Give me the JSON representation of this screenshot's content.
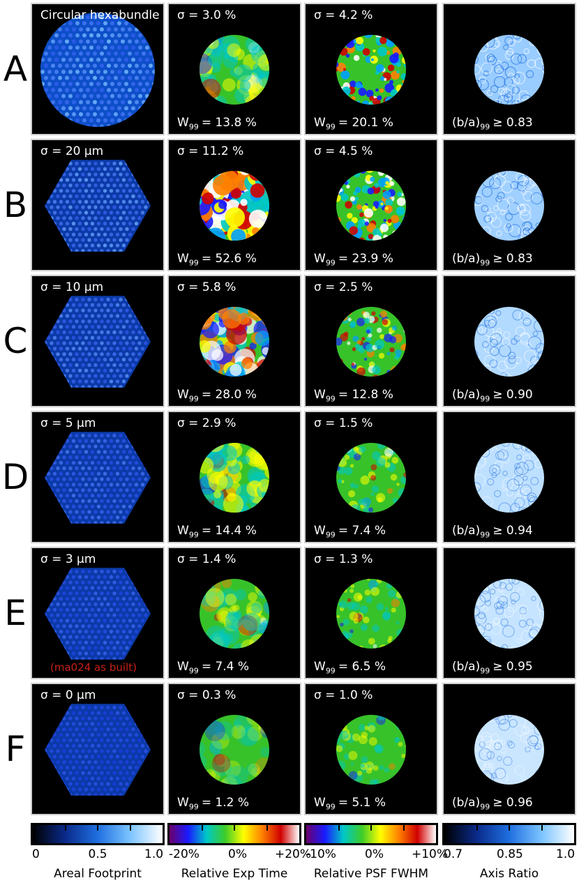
{
  "rows": [
    {
      "label": "A",
      "footprint_text": "Circular hexabundle",
      "exp_sigma": "σ = 3.0 %",
      "exp_w": "= 13.8 %",
      "psf_sigma": "σ = 4.2 %",
      "psf_w": "= 20.1 %",
      "axis_ratio": "≥ 0.83",
      "note": ""
    },
    {
      "label": "B",
      "footprint_text": "σ = 20 μm",
      "exp_sigma": "σ = 11.2 %",
      "exp_w": "= 52.6 %",
      "psf_sigma": "σ = 4.5 %",
      "psf_w": "= 23.9 %",
      "axis_ratio": "≥ 0.83",
      "note": ""
    },
    {
      "label": "C",
      "footprint_text": "σ = 10 μm",
      "exp_sigma": "σ = 5.8 %",
      "exp_w": "= 28.0 %",
      "psf_sigma": "σ = 2.5 %",
      "psf_w": "= 12.8 %",
      "axis_ratio": "≥ 0.90",
      "note": ""
    },
    {
      "label": "D",
      "footprint_text": "σ = 5 μm",
      "exp_sigma": "σ = 2.9 %",
      "exp_w": "= 14.4 %",
      "psf_sigma": "σ = 1.5 %",
      "psf_w": "= 7.4 %",
      "axis_ratio": "≥ 0.94",
      "note": ""
    },
    {
      "label": "E",
      "footprint_text": "σ = 3 μm",
      "exp_sigma": "σ = 1.4 %",
      "exp_w": "= 7.4 %",
      "psf_sigma": "σ = 1.3 %",
      "psf_w": "= 6.5 %",
      "axis_ratio": "≥ 0.95",
      "note": "(ma024 as built)"
    },
    {
      "label": "F",
      "footprint_text": "σ = 0 μm",
      "exp_sigma": "σ = 0.3 %",
      "exp_w": "= 1.2 %",
      "psf_sigma": "σ = 1.0 %",
      "psf_w": "= 5.1 %",
      "axis_ratio": "≥ 0.96",
      "note": ""
    }
  ],
  "w_symbol": "W",
  "w_sub": "99",
  "ba_prefix": "(b/a)",
  "colorbars": [
    {
      "title": "Areal Footprint",
      "ticks": [
        "0",
        "0.5",
        "1.0"
      ],
      "colors": [
        "#000000",
        "#0a2a8a",
        "#1f6fe0",
        "#7cc4ff",
        "#ffffff"
      ]
    },
    {
      "title": "Relative Exp Time",
      "ticks": [
        "-20%",
        "0%",
        "+20%"
      ],
      "colors": [
        "#6b006b",
        "#1a1aff",
        "#00c8c8",
        "#3ccc2a",
        "#ffff00",
        "#ff8000",
        "#d00000",
        "#ffffff"
      ]
    },
    {
      "title": "Relative PSF FWHM",
      "ticks": [
        "-10%",
        "0%",
        "+10%"
      ],
      "colors": [
        "#6b006b",
        "#1a1aff",
        "#00c8c8",
        "#3ccc2a",
        "#ffff00",
        "#ff8000",
        "#d00000",
        "#ffffff"
      ]
    },
    {
      "title": "Axis Ratio",
      "ticks": [
        "0.7",
        "0.85",
        "1.0"
      ],
      "colors": [
        "#000000",
        "#0a2a8a",
        "#1f6fe0",
        "#7cc4ff",
        "#ffffff"
      ]
    }
  ]
}
